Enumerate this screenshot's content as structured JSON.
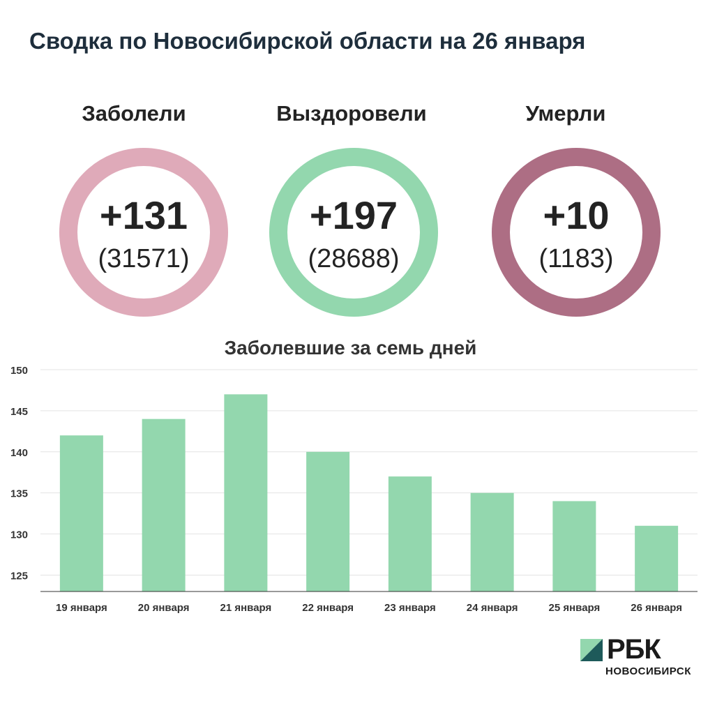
{
  "title": "Сводка по Новосибирской области на 26 января",
  "stats": [
    {
      "label": "Заболели",
      "value": "+131",
      "total": "(31571)",
      "color": "#dfaab9"
    },
    {
      "label": "Выздоровели",
      "value": "+197",
      "total": "(28688)",
      "color": "#93d7ae"
    },
    {
      "label": "Умерли",
      "value": "+10",
      "total": "(1183)",
      "color": "#ad6e84"
    }
  ],
  "chart_data": {
    "type": "bar",
    "title": "Заболевшие за семь дней",
    "categories": [
      "19 января",
      "20 января",
      "21 января",
      "22 января",
      "23 января",
      "24 января",
      "25 января",
      "26 января"
    ],
    "values": [
      142,
      144,
      147,
      140,
      137,
      135,
      134,
      131
    ],
    "ylim": [
      123,
      150
    ],
    "yticks": [
      125,
      130,
      135,
      140,
      145,
      150
    ],
    "grid": true,
    "bar_color": "#93d7ae"
  },
  "logo": {
    "name": "РБК",
    "city": "НОВОСИБИРСК"
  }
}
